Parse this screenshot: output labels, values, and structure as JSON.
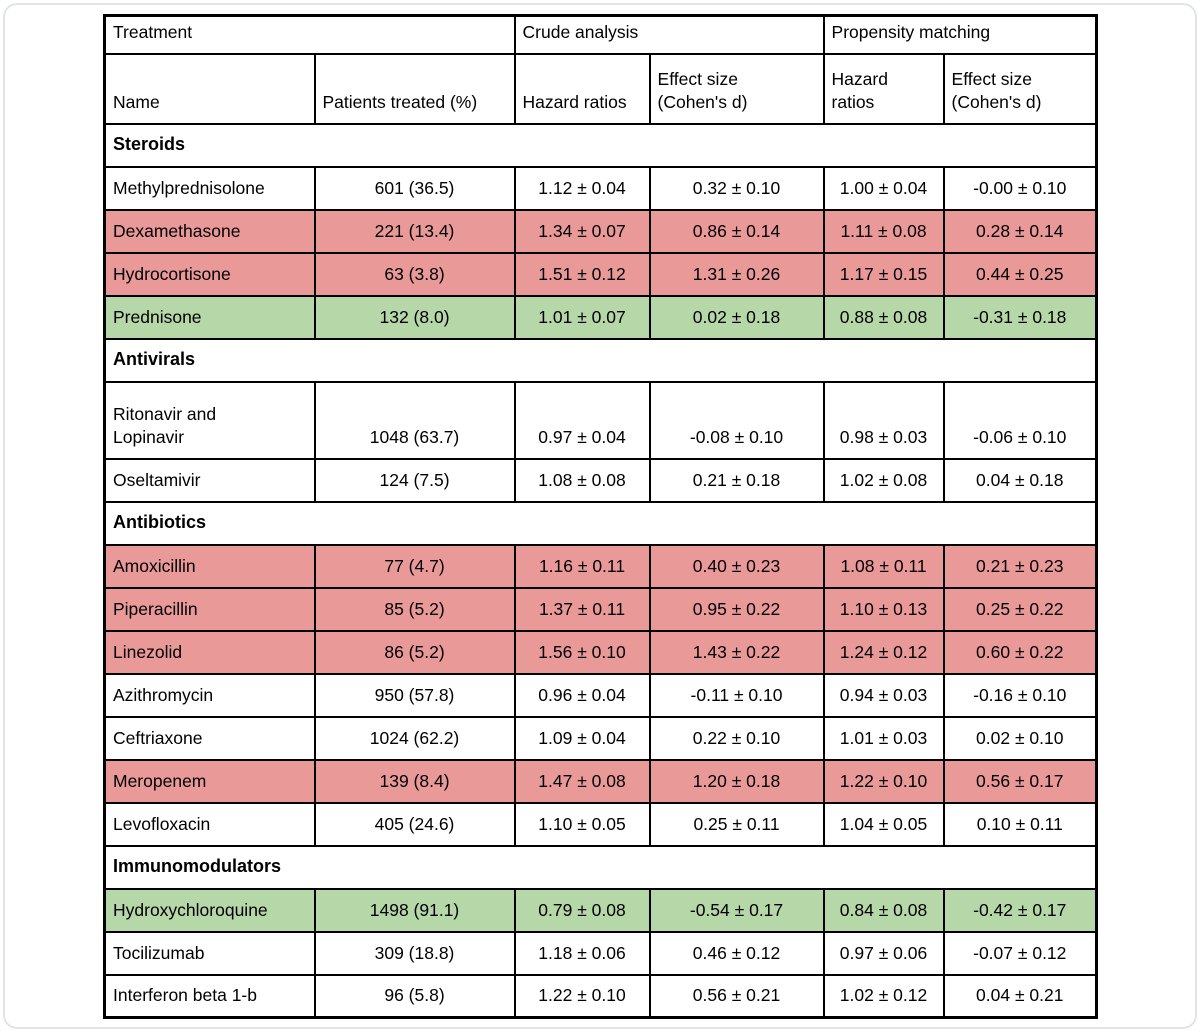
{
  "colors": {
    "highlight_red": "#ea9999",
    "highlight_green": "#b6d7a8",
    "table_border": "#000000",
    "frame_border": "#e0e4ea",
    "background": "#ffffff"
  },
  "table": {
    "col_groups": [
      {
        "label": "Treatment"
      },
      {
        "label": "Crude analysis"
      },
      {
        "label": "Propensity matching"
      }
    ],
    "col_headers": {
      "name": "Name",
      "patients": "Patients treated (%)",
      "crude_hr": "Hazard ratios",
      "crude_es": "Effect size\n(Cohen's d)",
      "pm_hr": "Hazard\nratios",
      "pm_es": "Effect size\n(Cohen's d)"
    },
    "sections": [
      {
        "title": "Steroids",
        "rows": [
          {
            "name": "Methylprednisolone",
            "patients": "601 (36.5)",
            "crude_hr": "1.12 ± 0.04",
            "crude_es": "0.32 ± 0.10",
            "pm_hr": "1.00 ± 0.04",
            "pm_es": "-0.00 ± 0.10",
            "highlight": "none"
          },
          {
            "name": "Dexamethasone",
            "patients": "221 (13.4)",
            "crude_hr": "1.34 ± 0.07",
            "crude_es": "0.86 ± 0.14",
            "pm_hr": "1.11 ± 0.08",
            "pm_es": "0.28 ± 0.14",
            "highlight": "red"
          },
          {
            "name": "Hydrocortisone",
            "patients": "63 (3.8)",
            "crude_hr": "1.51 ± 0.12",
            "crude_es": "1.31 ± 0.26",
            "pm_hr": "1.17 ± 0.15",
            "pm_es": "0.44 ± 0.25",
            "highlight": "red"
          },
          {
            "name": "Prednisone",
            "patients": "132 (8.0)",
            "crude_hr": "1.01 ± 0.07",
            "crude_es": "0.02 ± 0.18",
            "pm_hr": "0.88 ± 0.08",
            "pm_es": "-0.31 ± 0.18",
            "highlight": "green"
          }
        ]
      },
      {
        "title": "Antivirals",
        "rows": [
          {
            "name": "Ritonavir and\nLopinavir",
            "patients": "1048 (63.7)",
            "crude_hr": "0.97 ± 0.04",
            "crude_es": "-0.08 ± 0.10",
            "pm_hr": "0.98 ± 0.03",
            "pm_es": "-0.06 ± 0.10",
            "highlight": "none"
          },
          {
            "name": "Oseltamivir",
            "patients": "124 (7.5)",
            "crude_hr": "1.08 ± 0.08",
            "crude_es": "0.21 ± 0.18",
            "pm_hr": "1.02 ± 0.08",
            "pm_es": "0.04 ± 0.18",
            "highlight": "none"
          }
        ]
      },
      {
        "title": "Antibiotics",
        "rows": [
          {
            "name": "Amoxicillin",
            "patients": "77 (4.7)",
            "crude_hr": "1.16 ± 0.11",
            "crude_es": "0.40 ± 0.23",
            "pm_hr": "1.08 ± 0.11",
            "pm_es": "0.21 ± 0.23",
            "highlight": "red"
          },
          {
            "name": "Piperacillin",
            "patients": "85 (5.2)",
            "crude_hr": "1.37 ± 0.11",
            "crude_es": "0.95 ± 0.22",
            "pm_hr": "1.10 ± 0.13",
            "pm_es": "0.25 ± 0.22",
            "highlight": "red"
          },
          {
            "name": "Linezolid",
            "patients": "86 (5.2)",
            "crude_hr": "1.56 ± 0.10",
            "crude_es": "1.43 ± 0.22",
            "pm_hr": "1.24 ± 0.12",
            "pm_es": "0.60 ± 0.22",
            "highlight": "red"
          },
          {
            "name": "Azithromycin",
            "patients": "950 (57.8)",
            "crude_hr": "0.96 ± 0.04",
            "crude_es": "-0.11 ± 0.10",
            "pm_hr": "0.94 ± 0.03",
            "pm_es": "-0.16 ± 0.10",
            "highlight": "none"
          },
          {
            "name": "Ceftriaxone",
            "patients": "1024 (62.2)",
            "crude_hr": "1.09 ± 0.04",
            "crude_es": "0.22 ± 0.10",
            "pm_hr": "1.01 ± 0.03",
            "pm_es": "0.02 ± 0.10",
            "highlight": "none"
          },
          {
            "name": "Meropenem",
            "patients": "139 (8.4)",
            "crude_hr": "1.47 ± 0.08",
            "crude_es": "1.20 ± 0.18",
            "pm_hr": "1.22 ± 0.10",
            "pm_es": "0.56 ± 0.17",
            "highlight": "red"
          },
          {
            "name": "Levofloxacin",
            "patients": "405 (24.6)",
            "crude_hr": "1.10 ± 0.05",
            "crude_es": "0.25 ± 0.11",
            "pm_hr": "1.04 ± 0.05",
            "pm_es": "0.10 ± 0.11",
            "highlight": "none"
          }
        ]
      },
      {
        "title": "Immunomodulators",
        "rows": [
          {
            "name": "Hydroxychloroquine",
            "patients": "1498 (91.1)",
            "crude_hr": "0.79 ± 0.08",
            "crude_es": "-0.54 ± 0.17",
            "pm_hr": "0.84 ± 0.08",
            "pm_es": "-0.42 ± 0.17",
            "highlight": "green"
          },
          {
            "name": "Tocilizumab",
            "patients": "309 (18.8)",
            "crude_hr": "1.18 ± 0.06",
            "crude_es": "0.46 ± 0.12",
            "pm_hr": "0.97 ± 0.06",
            "pm_es": "-0.07 ± 0.12",
            "highlight": "none"
          },
          {
            "name": "Interferon beta 1-b",
            "patients": "96 (5.8)",
            "crude_hr": "1.22 ± 0.10",
            "crude_es": "0.56 ± 0.21",
            "pm_hr": "1.02 ± 0.12",
            "pm_es": "0.04 ± 0.21",
            "highlight": "none"
          }
        ]
      }
    ]
  }
}
